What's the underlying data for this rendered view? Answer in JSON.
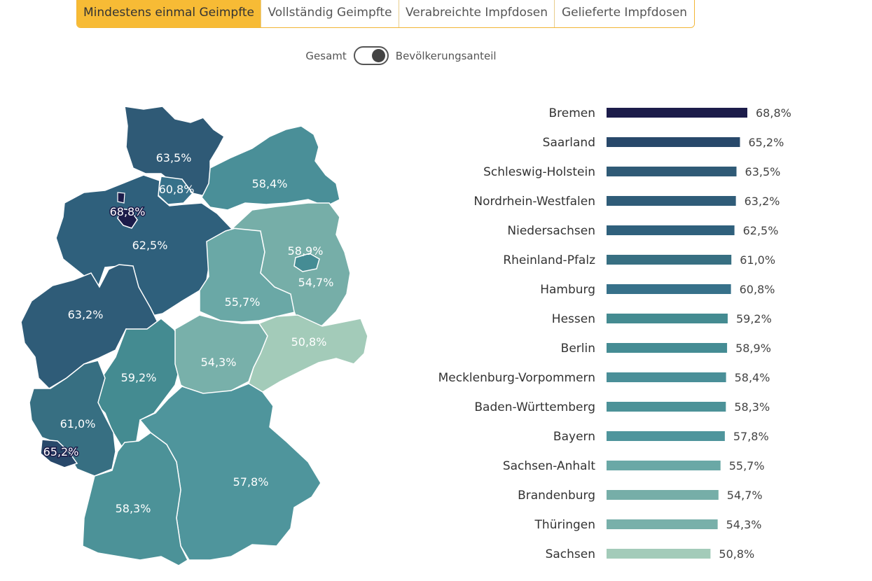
{
  "tabs": [
    {
      "label": "Mindestens einmal Geimpfte",
      "active": true
    },
    {
      "label": "Vollständig Geimpfte",
      "active": false
    },
    {
      "label": "Verabreichte Impfdosen",
      "active": false
    },
    {
      "label": "Gelieferte Impfdosen",
      "active": false
    }
  ],
  "toggle": {
    "left_label": "Gesamt",
    "right_label": "Bevölkerungsanteil",
    "state": "right"
  },
  "colors": {
    "accent": "#f7bb35",
    "scale_low": "#a3cbb9",
    "scale_high": "#1c1c4a"
  },
  "chart_data": {
    "type": "bar",
    "orientation": "horizontal",
    "title": "",
    "unit": "%",
    "xlim": [
      0,
      70
    ],
    "categories": [
      "Bremen",
      "Saarland",
      "Schleswig-Holstein",
      "Nordrhein-Westfalen",
      "Niedersachsen",
      "Rheinland-Pfalz",
      "Hamburg",
      "Hessen",
      "Berlin",
      "Mecklenburg-Vorpommern",
      "Baden-Württemberg",
      "Bayern",
      "Sachsen-Anhalt",
      "Brandenburg",
      "Thüringen",
      "Sachsen"
    ],
    "values": [
      68.8,
      65.2,
      63.5,
      63.2,
      62.5,
      61.0,
      60.8,
      59.2,
      58.9,
      58.4,
      58.3,
      57.8,
      55.7,
      54.7,
      54.3,
      50.8
    ],
    "value_labels": [
      "68,8%",
      "65,2%",
      "63,5%",
      "63,2%",
      "62,5%",
      "61,0%",
      "60,8%",
      "59,2%",
      "58,9%",
      "58,4%",
      "58,3%",
      "57,8%",
      "55,7%",
      "54,7%",
      "54,3%",
      "50,8%"
    ],
    "colors": [
      "#1c1c4a",
      "#28486a",
      "#2f5a76",
      "#2f5c78",
      "#2f607c",
      "#376f82",
      "#37718a",
      "#448b91",
      "#458c94",
      "#4a8f98",
      "#4c9298",
      "#4f959c",
      "#6aa8a6",
      "#76aea8",
      "#78b0aa",
      "#a3cbb9"
    ]
  }
}
